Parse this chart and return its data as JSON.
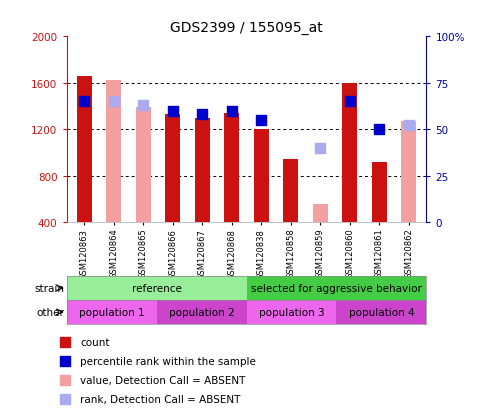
{
  "title": "GDS2399 / 155095_at",
  "samples": [
    "GSM120863",
    "GSM120864",
    "GSM120865",
    "GSM120866",
    "GSM120867",
    "GSM120868",
    "GSM120838",
    "GSM120858",
    "GSM120859",
    "GSM120860",
    "GSM120861",
    "GSM120862"
  ],
  "count_values": [
    1660,
    null,
    null,
    1330,
    1300,
    1340,
    1200,
    940,
    null,
    1600,
    920,
    null
  ],
  "absent_values": [
    null,
    1620,
    1390,
    null,
    null,
    null,
    null,
    null,
    560,
    null,
    null,
    1270
  ],
  "rank_present": [
    65,
    null,
    null,
    60,
    58,
    60,
    55,
    null,
    null,
    65,
    50,
    null
  ],
  "rank_absent": [
    null,
    65,
    63,
    null,
    null,
    null,
    null,
    null,
    40,
    null,
    null,
    52
  ],
  "ylim_left": [
    400,
    2000
  ],
  "ylim_right": [
    0,
    100
  ],
  "yticks_left": [
    400,
    800,
    1200,
    1600,
    2000
  ],
  "yticks_right": [
    0,
    25,
    50,
    75,
    100
  ],
  "bar_color_present": "#cc1111",
  "bar_color_absent": "#f4a0a0",
  "rank_color_present": "#0000cc",
  "rank_color_absent": "#aaaaee",
  "bar_width": 0.5,
  "rank_marker_size": 55,
  "strain_groups": [
    {
      "label": "reference",
      "start": 0,
      "end": 6,
      "color": "#99ee99"
    },
    {
      "label": "selected for aggressive behavior",
      "start": 6,
      "end": 12,
      "color": "#44cc44"
    }
  ],
  "other_groups": [
    {
      "label": "population 1",
      "start": 0,
      "end": 3,
      "color": "#ee66ee"
    },
    {
      "label": "population 2",
      "start": 3,
      "end": 6,
      "color": "#cc44cc"
    },
    {
      "label": "population 3",
      "start": 6,
      "end": 9,
      "color": "#ee66ee"
    },
    {
      "label": "population 4",
      "start": 9,
      "end": 12,
      "color": "#cc44cc"
    }
  ],
  "strain_label": "strain",
  "other_label": "other",
  "legend_items": [
    {
      "label": "count",
      "color": "#cc1111"
    },
    {
      "label": "percentile rank within the sample",
      "color": "#0000cc"
    },
    {
      "label": "value, Detection Call = ABSENT",
      "color": "#f4a0a0"
    },
    {
      "label": "rank, Detection Call = ABSENT",
      "color": "#aaaaee"
    }
  ],
  "background_color": "#ffffff",
  "axis_color_left": "#cc1111",
  "axis_color_right": "#0000aa",
  "tick_label_fontsize": 7.5,
  "xtick_fontsize": 6.0
}
